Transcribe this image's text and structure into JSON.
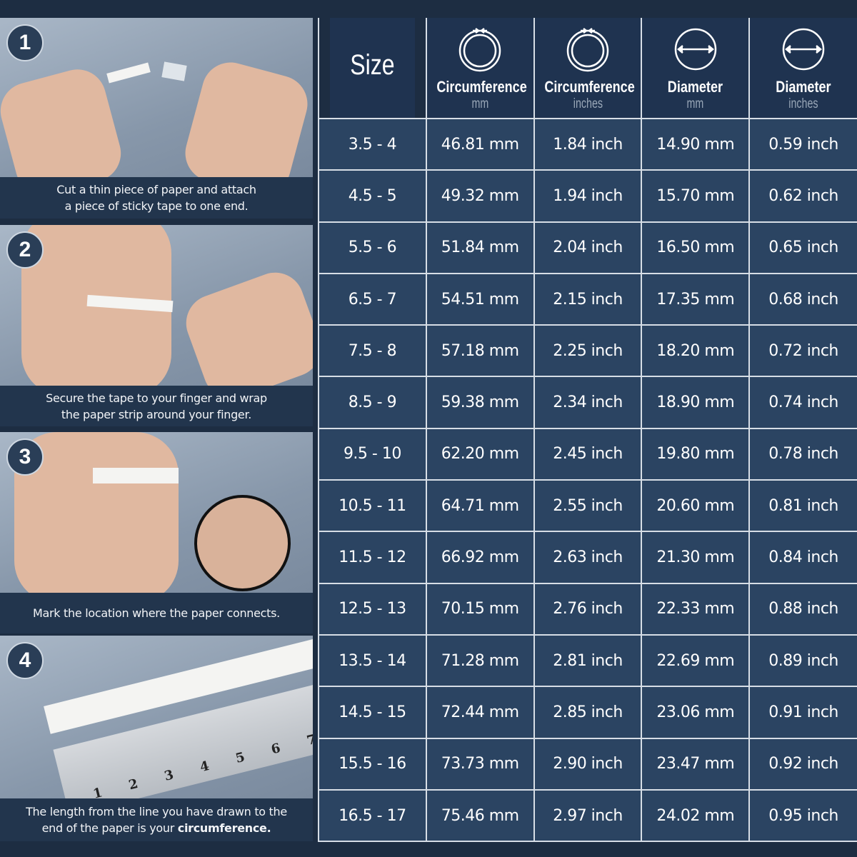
{
  "steps": [
    {
      "number": "1",
      "caption_lines": [
        "Cut a thin piece of paper and attach",
        "a piece of sticky tape to one end."
      ]
    },
    {
      "number": "2",
      "caption_lines": [
        "Secure the tape to your finger and wrap",
        "the paper strip around your finger."
      ]
    },
    {
      "number": "3",
      "caption_lines": [
        "Mark the location where the paper connects."
      ]
    },
    {
      "number": "4",
      "caption_lines": [
        "The length from the line you have drawn to the",
        "end of the paper is your"
      ],
      "caption_bold": "circumference."
    }
  ],
  "ruler_numbers": [
    "1",
    "2",
    "3",
    "4",
    "5",
    "6",
    "7"
  ],
  "table": {
    "headers": [
      {
        "title": "Size",
        "unit": "",
        "icon": ""
      },
      {
        "title": "Circumference",
        "unit": "mm",
        "icon": "circumference-ring-icon"
      },
      {
        "title": "Circumference",
        "unit": "inches",
        "icon": "circumference-ring-icon"
      },
      {
        "title": "Diameter",
        "unit": "mm",
        "icon": "diameter-circle-icon"
      },
      {
        "title": "Diameter",
        "unit": "inches",
        "icon": "diameter-circle-icon"
      }
    ],
    "rows": [
      [
        "3.5 - 4",
        "46.81 mm",
        "1.84 inch",
        "14.90 mm",
        "0.59 inch"
      ],
      [
        "4.5 - 5",
        "49.32 mm",
        "1.94 inch",
        "15.70 mm",
        "0.62 inch"
      ],
      [
        "5.5 - 6",
        "51.84 mm",
        "2.04 inch",
        "16.50 mm",
        "0.65 inch"
      ],
      [
        "6.5 - 7",
        "54.51 mm",
        "2.15 inch",
        "17.35 mm",
        "0.68 inch"
      ],
      [
        "7.5 - 8",
        "57.18 mm",
        "2.25 inch",
        "18.20 mm",
        "0.72 inch"
      ],
      [
        "8.5 - 9",
        "59.38 mm",
        "2.34 inch",
        "18.90 mm",
        "0.74 inch"
      ],
      [
        "9.5 - 10",
        "62.20 mm",
        "2.45 inch",
        "19.80 mm",
        "0.78 inch"
      ],
      [
        "10.5 - 11",
        "64.71 mm",
        "2.55 inch",
        "20.60 mm",
        "0.81 inch"
      ],
      [
        "11.5 - 12",
        "66.92 mm",
        "2.63 inch",
        "21.30 mm",
        "0.84 inch"
      ],
      [
        "12.5 - 13",
        "70.15 mm",
        "2.76 inch",
        "22.33 mm",
        "0.88 inch"
      ],
      [
        "13.5 - 14",
        "71.28 mm",
        "2.81 inch",
        "22.69 mm",
        "0.89 inch"
      ],
      [
        "14.5 - 15",
        "72.44 mm",
        "2.85 inch",
        "23.06 mm",
        "0.91 inch"
      ],
      [
        "15.5 - 16",
        "73.73 mm",
        "2.90 inch",
        "23.47 mm",
        "0.92 inch"
      ],
      [
        "16.5 - 17",
        "75.46 mm",
        "2.97 inch",
        "24.02 mm",
        "0.95 inch"
      ]
    ]
  },
  "colors": {
    "background": "#1d2d42",
    "header": "#1f3350",
    "row": "#2b4462",
    "grid": "#d7dee6"
  }
}
